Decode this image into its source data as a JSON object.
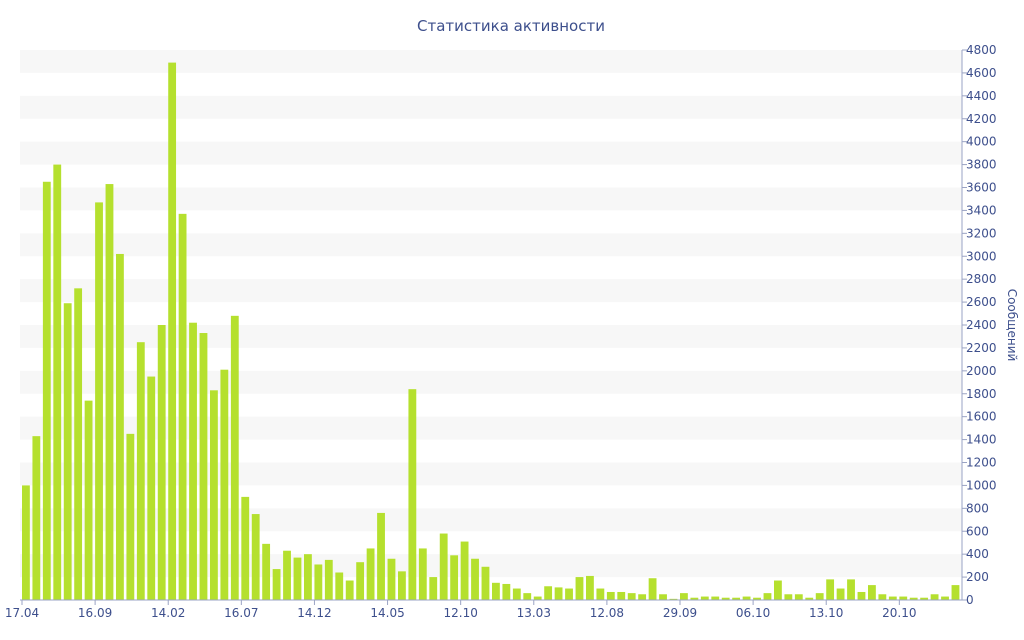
{
  "chart_data": {
    "type": "bar",
    "title": "Статистика активности",
    "ylabel": "Сообщений",
    "xlabel": "",
    "ylim": [
      0,
      4800
    ],
    "y_ticks": [
      0,
      200,
      400,
      600,
      800,
      1000,
      1200,
      1400,
      1600,
      1800,
      2000,
      2200,
      2400,
      2600,
      2800,
      3000,
      3200,
      3400,
      3600,
      3800,
      4000,
      4200,
      4400,
      4600,
      4800
    ],
    "y_axis_position": "right",
    "grid": "alternating horizontal bands",
    "x_tick_labels": [
      "17.04",
      "16.09",
      "14.02",
      "16.07",
      "14.12",
      "14.05",
      "12.10",
      "13.03",
      "12.08",
      "29.09",
      "06.10",
      "13.10",
      "20.10"
    ],
    "bar_color": "#b5e02e",
    "values": [
      1000,
      1430,
      3650,
      3800,
      2590,
      2720,
      1740,
      3470,
      3630,
      3020,
      1450,
      2250,
      1950,
      2400,
      4690,
      3370,
      2420,
      2330,
      1830,
      2010,
      2480,
      900,
      750,
      490,
      270,
      430,
      370,
      400,
      310,
      350,
      240,
      170,
      330,
      450,
      760,
      360,
      250,
      1840,
      450,
      200,
      580,
      390,
      510,
      360,
      290,
      150,
      140,
      100,
      60,
      30,
      120,
      110,
      100,
      200,
      210,
      100,
      70,
      70,
      60,
      50,
      190,
      50,
      10,
      60,
      20,
      30,
      30,
      20,
      20,
      30,
      20,
      60,
      170,
      50,
      50,
      20,
      60,
      180,
      100,
      180,
      70,
      130,
      50,
      30,
      30,
      20,
      20,
      50,
      30,
      130
    ]
  }
}
